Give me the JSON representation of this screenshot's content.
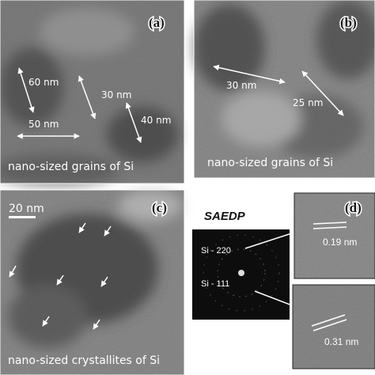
{
  "panels": {
    "a": {
      "label": "(a)",
      "annotations": [
        "60 nm",
        "30 nm",
        "50 nm",
        "40 nm"
      ],
      "caption": "nano-sized grains of Si"
    },
    "b": {
      "label": "(b)",
      "annotations": [
        "30 nm",
        "25 nm"
      ],
      "caption": "nano-sized grains of Si"
    },
    "c": {
      "label": "(c)",
      "scale_bar": "20 nm",
      "caption": "nano-sized crystallites of Si"
    },
    "saedp": {
      "title": "SAEDP",
      "rings": [
        "Si - 220",
        "Si - 111"
      ]
    },
    "d": {
      "label": "(d)",
      "spacings": [
        "0.19 nm",
        "0.31 nm"
      ]
    }
  }
}
